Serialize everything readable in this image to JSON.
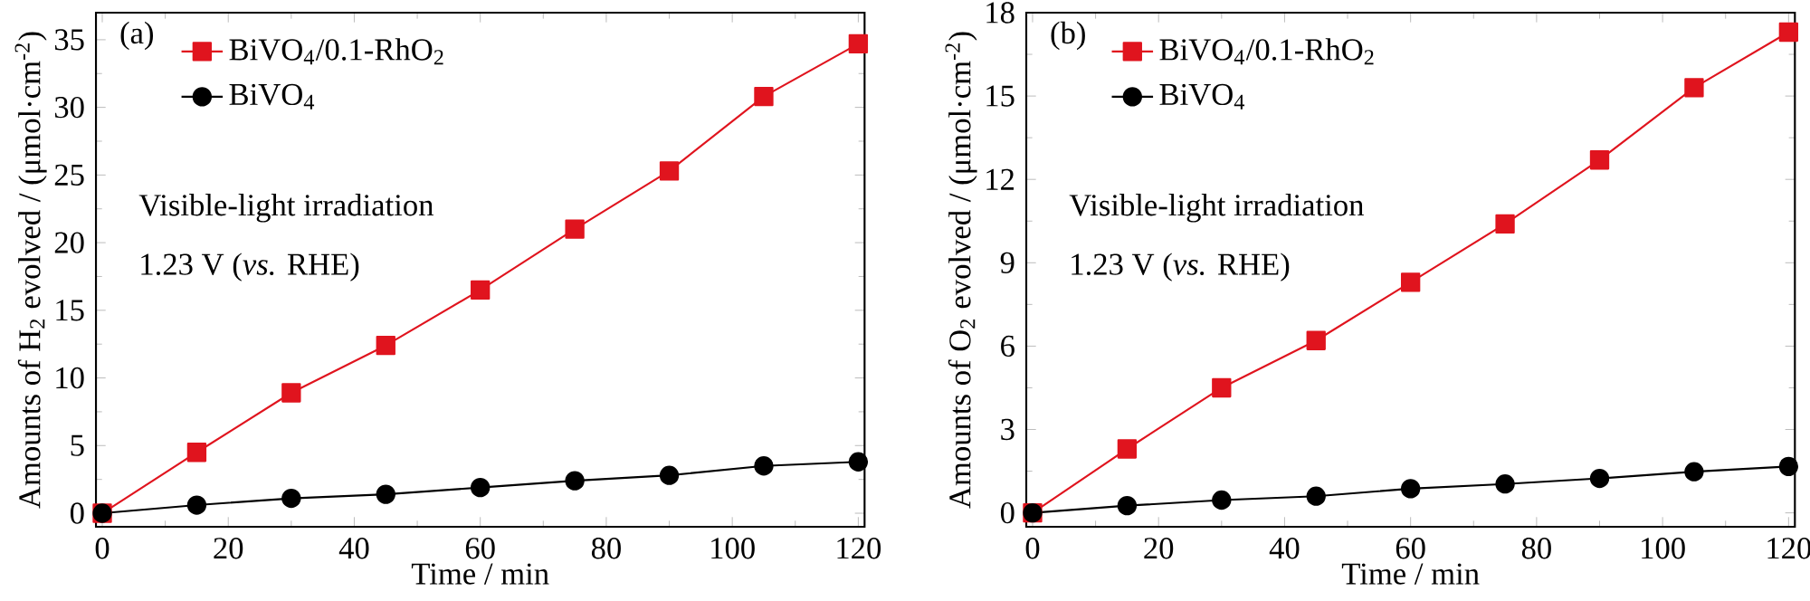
{
  "chart_data": [
    {
      "type": "line",
      "annotations": [
        "(a)",
        "Visible-light irradiation",
        "1.23 V (*vs.* RHE)"
      ],
      "xlabel": "Time / min",
      "ylabel": "Amounts of H$_{2}$ evolved / (μmol·cm$^{-2}$)",
      "x": [
        0,
        15,
        30,
        45,
        60,
        75,
        90,
        105,
        120
      ],
      "xlim": [
        -1,
        121
      ],
      "ylim": [
        -1,
        37
      ],
      "xticks": [
        0,
        20,
        40,
        60,
        80,
        100,
        120
      ],
      "yticks": [
        0,
        5,
        10,
        15,
        20,
        25,
        30,
        35
      ],
      "legend": "top left",
      "series": [
        {
          "name": "BiVO$_{4}$/0.1-RhO$_{2}$",
          "color": "#e0141e",
          "marker": "square",
          "values": [
            0,
            4.5,
            8.9,
            12.4,
            16.5,
            21.0,
            25.3,
            30.8,
            34.7
          ]
        },
        {
          "name": "BiVO$_{4}$",
          "color": "#000000",
          "marker": "circle",
          "values": [
            0,
            0.6,
            1.1,
            1.4,
            1.9,
            2.4,
            2.8,
            3.5,
            3.8
          ]
        }
      ]
    },
    {
      "type": "line",
      "annotations": [
        "(b)",
        "Visible-light irradiation",
        "1.23 V (*vs.* RHE)"
      ],
      "xlabel": "Time / min",
      "ylabel": "Amounts of O$_{2}$ evolved / (μmol·cm$^{-2}$)",
      "x": [
        0,
        15,
        30,
        45,
        60,
        75,
        90,
        105,
        120
      ],
      "xlim": [
        -1,
        121
      ],
      "ylim": [
        -0.5,
        18
      ],
      "xticks": [
        0,
        20,
        40,
        60,
        80,
        100,
        120
      ],
      "yticks": [
        0,
        3,
        6,
        9,
        12,
        15,
        18
      ],
      "legend": "top left",
      "series": [
        {
          "name": "BiVO$_{4}$/0.1-RhO$_{2}$",
          "color": "#e0141e",
          "marker": "square",
          "values": [
            0,
            2.3,
            4.5,
            6.2,
            8.3,
            10.4,
            12.7,
            15.3,
            17.3
          ]
        },
        {
          "name": "BiVO$_{4}$",
          "color": "#000000",
          "marker": "circle",
          "values": [
            0,
            0.26,
            0.46,
            0.6,
            0.87,
            1.04,
            1.24,
            1.48,
            1.67
          ]
        }
      ]
    }
  ]
}
